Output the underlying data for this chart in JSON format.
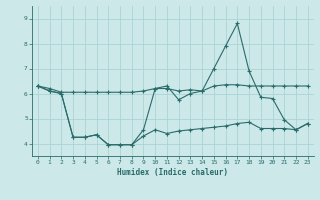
{
  "xlabel": "Humidex (Indice chaleur)",
  "bg_color": "#cce8e8",
  "line_color": "#2a6b6b",
  "grid_color": "#aad4d4",
  "xlim": [
    -0.5,
    23.5
  ],
  "ylim": [
    3.5,
    9.5
  ],
  "yticks": [
    4,
    5,
    6,
    7,
    8,
    9
  ],
  "xticks": [
    0,
    1,
    2,
    3,
    4,
    5,
    6,
    7,
    8,
    9,
    10,
    11,
    12,
    13,
    14,
    15,
    16,
    17,
    18,
    19,
    20,
    21,
    22,
    23
  ],
  "series": [
    {
      "x": [
        0,
        1,
        2,
        3,
        4,
        5,
        6,
        7,
        8,
        9,
        10,
        11,
        12,
        13,
        14,
        15,
        16,
        17,
        18,
        19,
        20,
        21,
        22,
        23
      ],
      "y": [
        6.3,
        6.2,
        6.05,
        6.05,
        6.05,
        6.05,
        6.05,
        6.05,
        6.05,
        6.1,
        6.2,
        6.2,
        6.1,
        6.15,
        6.1,
        6.3,
        6.35,
        6.35,
        6.3,
        6.3,
        6.3,
        6.3,
        6.3,
        6.3
      ]
    },
    {
      "x": [
        0,
        1,
        2,
        3,
        4,
        5,
        6,
        7,
        8,
        9,
        10,
        11,
        12,
        13,
        14,
        15,
        16,
        17,
        18,
        19,
        20,
        21,
        22,
        23
      ],
      "y": [
        6.3,
        6.1,
        6.0,
        4.25,
        4.25,
        4.35,
        3.95,
        3.95,
        3.95,
        4.55,
        6.2,
        6.3,
        5.75,
        6.0,
        6.1,
        7.0,
        7.9,
        8.8,
        6.9,
        5.85,
        5.8,
        4.95,
        4.55,
        4.8
      ]
    },
    {
      "x": [
        0,
        1,
        2,
        3,
        4,
        5,
        6,
        7,
        8,
        9,
        10,
        11,
        12,
        13,
        14,
        15,
        16,
        17,
        18,
        19,
        20,
        21,
        22,
        23
      ],
      "y": [
        6.3,
        6.1,
        6.0,
        4.25,
        4.25,
        4.35,
        3.95,
        3.95,
        3.95,
        4.3,
        4.55,
        4.4,
        4.5,
        4.55,
        4.6,
        4.65,
        4.7,
        4.8,
        4.85,
        4.6,
        4.6,
        4.6,
        4.55,
        4.8
      ]
    }
  ]
}
